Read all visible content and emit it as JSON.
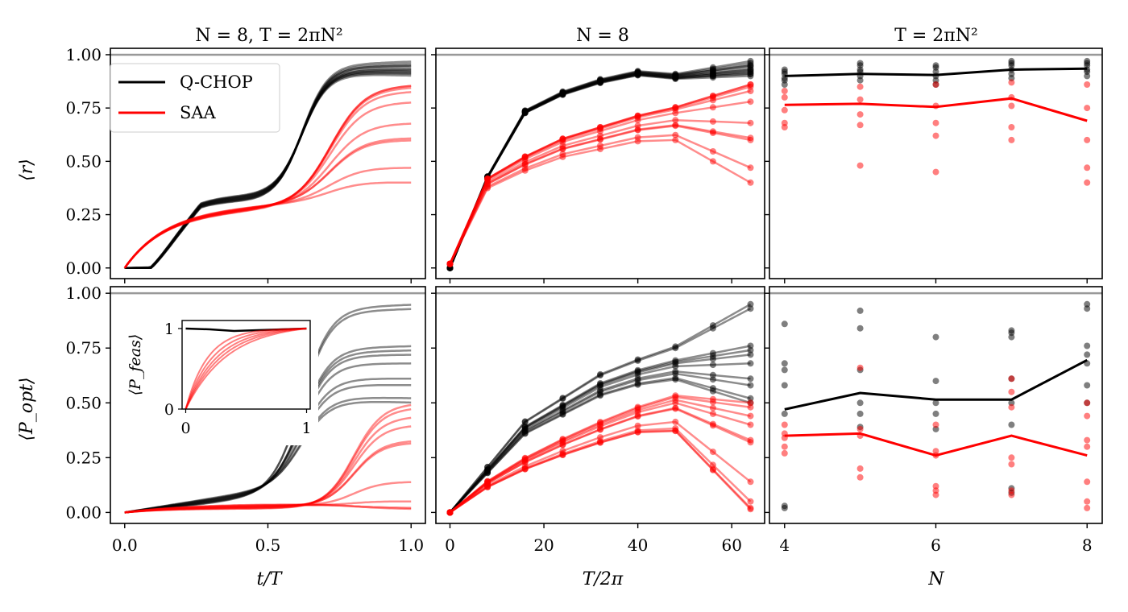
{
  "figure": {
    "titles": [
      "N = 8, T = 2πN²",
      "N = 8",
      "T = 2πN²"
    ],
    "ylabels": [
      "⟨r⟩",
      "⟨P_opt⟩"
    ],
    "xlabels": [
      "t/T",
      "T/2π",
      "N"
    ],
    "legend": [
      "Q-CHOP",
      "SAA"
    ],
    "inset_ylabel": "⟨P_feas⟩"
  },
  "chart_data": [
    {
      "type": "line",
      "panel": "row1-col1",
      "title": "N = 8, T = 2πN²",
      "xlabel": "",
      "ylabel": "⟨r⟩",
      "xlim": [
        -0.05,
        1.05
      ],
      "ylim": [
        -0.05,
        1.03
      ],
      "reference_line_y": 1.0,
      "xticks": [
        "0.0",
        "0.5",
        "1.0"
      ],
      "yticks": [
        "0.00",
        "0.25",
        "0.50",
        "0.75",
        "1.00"
      ],
      "series": [
        {
          "name": "Q-CHOP",
          "color": "#000000",
          "style": "sigmoid",
          "x_range": [
            0,
            1
          ],
          "params": {
            "onset": 0.09,
            "plateau_level": 0.33,
            "plateau_end": 0.45,
            "rise_mid": 0.62,
            "rise_width": 0.045
          },
          "finals": [
            0.97,
            0.96,
            0.95,
            0.95,
            0.94,
            0.93,
            0.93,
            0.92,
            0.92,
            0.91,
            0.91,
            0.9
          ]
        },
        {
          "name": "SAA",
          "color": "#ff0000",
          "style": "sigmoid",
          "x_range": [
            0,
            1
          ],
          "params": {
            "early_amp": 0.26,
            "early_tau": 0.14,
            "linear_slope": 0.06,
            "rise_mid": 0.72,
            "rise_width": 0.06
          },
          "finals": [
            0.86,
            0.86,
            0.85,
            0.83,
            0.78,
            0.68,
            0.61,
            0.6,
            0.47,
            0.4
          ]
        }
      ]
    },
    {
      "type": "line",
      "panel": "row1-col2",
      "title": "N = 8",
      "xlabel": "",
      "ylabel": "",
      "xlim": [
        -3,
        67
      ],
      "ylim": [
        -0.05,
        1.03
      ],
      "reference_line_y": 1.0,
      "xticks": [
        "0",
        "20",
        "40",
        "60"
      ],
      "yticks": [],
      "x": [
        0,
        8,
        16,
        24,
        32,
        40,
        48,
        56,
        64
      ],
      "series": [
        {
          "name": "Q-CHOP",
          "color": "#000000",
          "markers": true,
          "style": "interpolate",
          "anchors": [
            0,
            0.42,
            0.72,
            0.8,
            0.85,
            0.88
          ],
          "finals": [
            0.97,
            0.96,
            0.95,
            0.95,
            0.94,
            0.93,
            0.93,
            0.92,
            0.92,
            0.91,
            0.91,
            0.9
          ]
        },
        {
          "name": "SAA",
          "color": "#ff0000",
          "markers": true,
          "style": "interpolate",
          "anchors": [
            0.02,
            0.42,
            0.52,
            0.6,
            0.65,
            0.7
          ],
          "finals": [
            0.86,
            0.86,
            0.85,
            0.83,
            0.78,
            0.68,
            0.61,
            0.6,
            0.47,
            0.4
          ]
        }
      ]
    },
    {
      "type": "line",
      "panel": "row1-col3",
      "title": "T = 2πN²",
      "xlabel": "",
      "ylabel": "",
      "xlim": [
        3.8,
        8.2
      ],
      "ylim": [
        -0.05,
        1.03
      ],
      "reference_line_y": 1.0,
      "xticks": [
        "4",
        "6",
        "8"
      ],
      "yticks": [],
      "x": [
        4,
        5,
        6,
        7,
        8
      ],
      "series": [
        {
          "name": "Q-CHOP",
          "color": "#000000",
          "mean": [
            0.9,
            0.91,
            0.905,
            0.93,
            0.935
          ],
          "points": [
            [
              0.93,
              0.92,
              0.91,
              0.89,
              0.88,
              0.86
            ],
            [
              0.96,
              0.95,
              0.93,
              0.92,
              0.9,
              0.88
            ],
            [
              0.95,
              0.94,
              0.92,
              0.9,
              0.88,
              0.86
            ],
            [
              0.97,
              0.96,
              0.95,
              0.93,
              0.91,
              0.89
            ],
            [
              0.97,
              0.96,
              0.95,
              0.93,
              0.92,
              0.9
            ]
          ]
        },
        {
          "name": "SAA",
          "color": "#ff0000",
          "mean": [
            0.765,
            0.77,
            0.755,
            0.795,
            0.69
          ],
          "points": [
            [
              0.83,
              0.8,
              0.74,
              0.68,
              0.66
            ],
            [
              0.85,
              0.79,
              0.72,
              0.67,
              0.48
            ],
            [
              0.86,
              0.76,
              0.68,
              0.62,
              0.45
            ],
            [
              0.87,
              0.8,
              0.76,
              0.66,
              0.6
            ],
            [
              0.86,
              0.75,
              0.6,
              0.47,
              0.4
            ]
          ]
        }
      ]
    },
    {
      "type": "line",
      "panel": "row2-col1",
      "title": "",
      "xlabel": "t/T",
      "ylabel": "⟨P_opt⟩",
      "xlim": [
        -0.05,
        1.05
      ],
      "ylim": [
        -0.05,
        1.03
      ],
      "reference_line_y": 1.0,
      "xticks": [
        "0.0",
        "0.5",
        "1.0"
      ],
      "yticks": [
        "0.00",
        "0.25",
        "0.50",
        "0.75",
        "1.00"
      ],
      "series": [
        {
          "name": "Q-CHOP",
          "color": "#000000",
          "style": "sigmoid",
          "x_range": [
            0,
            1
          ],
          "params": {
            "linear_slope": 0.18,
            "rise_mid": 0.62,
            "rise_width": 0.05
          },
          "finals": [
            0.95,
            0.93,
            0.76,
            0.74,
            0.72,
            0.68,
            0.61,
            0.58,
            0.52,
            0.5
          ]
        },
        {
          "name": "SAA",
          "color": "#ff0000",
          "style": "sigmoid",
          "x_range": [
            0,
            1
          ],
          "params": {
            "early_amp": 0.03,
            "early_tau": 0.2,
            "rise_mid": 0.8,
            "rise_width": 0.05
          },
          "finals": [
            0.5,
            0.48,
            0.44,
            0.4,
            0.33,
            0.32,
            0.14,
            0.05,
            0.02,
            0.015
          ]
        }
      ],
      "inset": {
        "xlim": [
          -0.03,
          1.03
        ],
        "ylim": [
          0,
          1.1
        ],
        "xticks": [
          "0",
          "1"
        ],
        "yticks": [
          "0",
          "1"
        ],
        "ylabel": "⟨P_feas⟩",
        "series": [
          {
            "name": "Q-CHOP",
            "color": "#000000",
            "x": [
              0,
              0.2,
              0.4,
              0.6,
              0.8,
              1.0
            ],
            "y": [
              1.0,
              0.99,
              0.97,
              0.98,
              0.99,
              1.0
            ]
          },
          {
            "name": "SAA",
            "color": "#ff0000",
            "style": "saturating",
            "tau": [
              0.18,
              0.22,
              0.26,
              0.3,
              0.35
            ]
          }
        ]
      }
    },
    {
      "type": "line",
      "panel": "row2-col2",
      "title": "",
      "xlabel": "T/2π",
      "ylabel": "",
      "xlim": [
        -3,
        67
      ],
      "ylim": [
        -0.05,
        1.03
      ],
      "reference_line_y": 1.0,
      "xticks": [
        "0",
        "20",
        "40",
        "60"
      ],
      "yticks": [],
      "x": [
        0,
        8,
        16,
        24,
        32,
        40,
        48,
        56,
        64
      ],
      "series": [
        {
          "name": "Q-CHOP",
          "color": "#000000",
          "markers": true,
          "style": "interpolate",
          "anchors": [
            0,
            0.2,
            0.4,
            0.5,
            0.6,
            0.66
          ],
          "finals": [
            0.95,
            0.93,
            0.76,
            0.74,
            0.72,
            0.68,
            0.61,
            0.58,
            0.52,
            0.5
          ]
        },
        {
          "name": "SAA",
          "color": "#ff0000",
          "markers": true,
          "style": "interpolate",
          "anchors": [
            0,
            0.16,
            0.28,
            0.38,
            0.47,
            0.55
          ],
          "finals": [
            0.5,
            0.48,
            0.44,
            0.4,
            0.33,
            0.32,
            0.14,
            0.05,
            0.02,
            0.015
          ]
        }
      ]
    },
    {
      "type": "line",
      "panel": "row2-col3",
      "title": "",
      "xlabel": "N",
      "ylabel": "",
      "xlim": [
        3.8,
        8.2
      ],
      "ylim": [
        -0.05,
        1.03
      ],
      "reference_line_y": 1.0,
      "xticks": [
        "4",
        "6",
        "8"
      ],
      "yticks": [],
      "x": [
        4,
        5,
        6,
        7,
        8
      ],
      "series": [
        {
          "name": "Q-CHOP",
          "color": "#000000",
          "mean": [
            0.47,
            0.545,
            0.515,
            0.515,
            0.695
          ],
          "points": [
            [
              0.86,
              0.68,
              0.65,
              0.58,
              0.45,
              0.03,
              0.02
            ],
            [
              0.92,
              0.84,
              0.65,
              0.5,
              0.45,
              0.39
            ],
            [
              0.8,
              0.6,
              0.5,
              0.45,
              0.38
            ],
            [
              0.83,
              0.82,
              0.8,
              0.61,
              0.5,
              0.4,
              0.11,
              0.09
            ],
            [
              0.95,
              0.93,
              0.76,
              0.72,
              0.68,
              0.58,
              0.5
            ]
          ]
        },
        {
          "name": "SAA",
          "color": "#ff0000",
          "mean": [
            0.35,
            0.36,
            0.26,
            0.35,
            0.26
          ],
          "points": [
            [
              0.4,
              0.36,
              0.34,
              0.3,
              0.27
            ],
            [
              0.66,
              0.38,
              0.35,
              0.2,
              0.16
            ],
            [
              0.4,
              0.28,
              0.26,
              0.12,
              0.1,
              0.08
            ],
            [
              0.61,
              0.55,
              0.48,
              0.25,
              0.22,
              0.1,
              0.08
            ],
            [
              0.5,
              0.44,
              0.33,
              0.3,
              0.14,
              0.05,
              0.02
            ]
          ]
        }
      ]
    }
  ]
}
